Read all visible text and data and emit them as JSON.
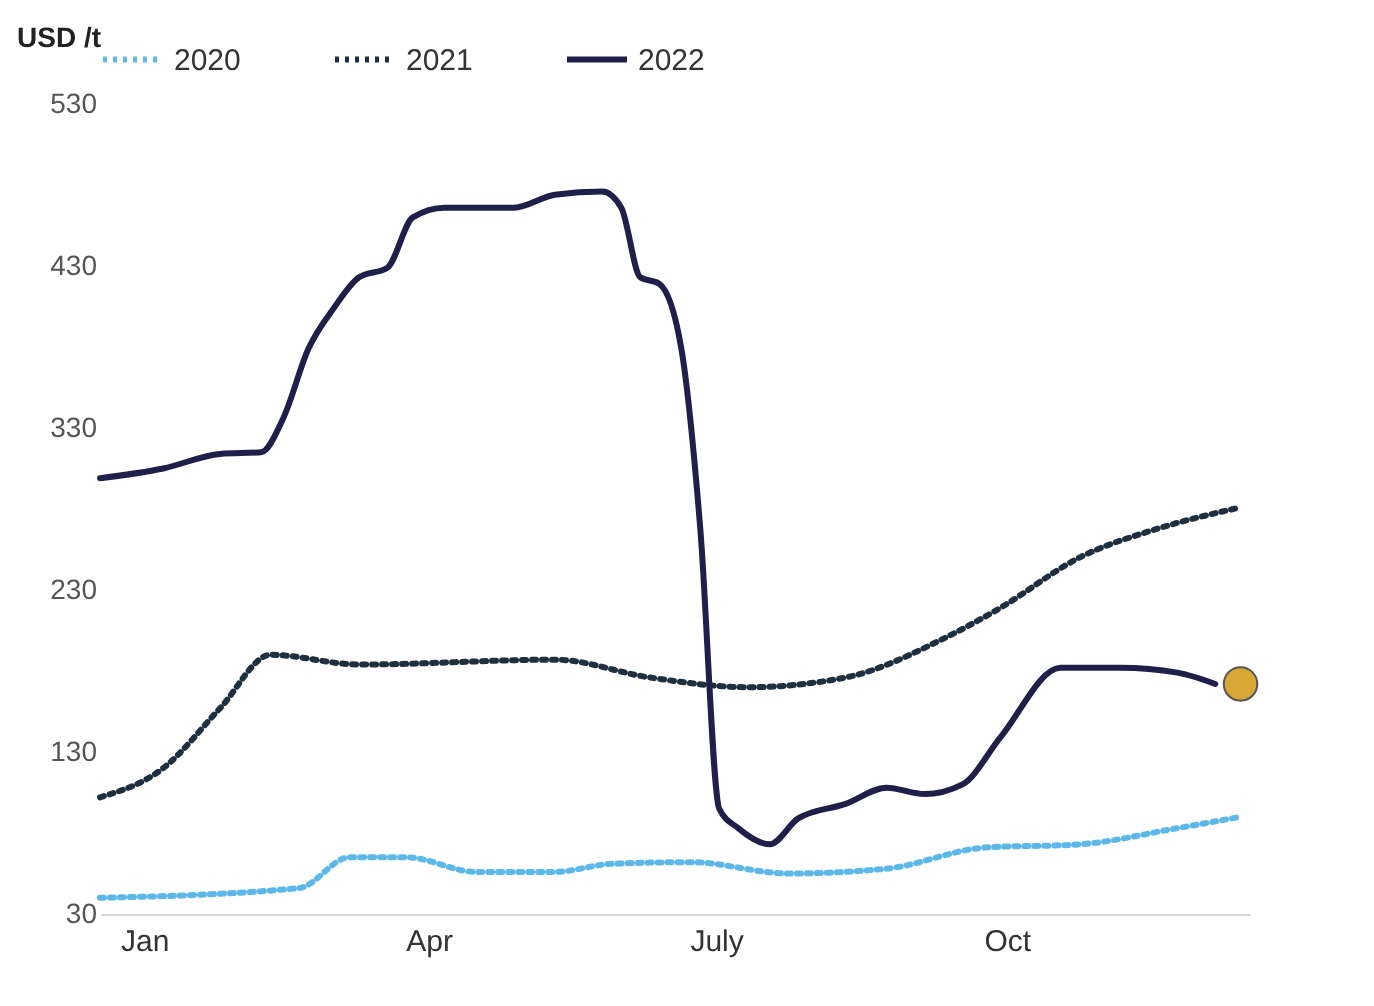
{
  "chart_data": {
    "type": "line",
    "ylabel": "USD /t",
    "xlim": [
      "--01-01",
      "--12-31"
    ],
    "xticks": [
      {
        "value": "--01-15",
        "label": "Jan"
      },
      {
        "value": "--04-15",
        "label": "Apr"
      },
      {
        "value": "--07-15",
        "label": "July"
      },
      {
        "value": "--10-15",
        "label": "Oct"
      }
    ],
    "ylim": [
      30,
      530
    ],
    "yticks": [
      30,
      130,
      230,
      330,
      430,
      530
    ],
    "grid": false,
    "legend": "top",
    "marker": "none",
    "series": [
      {
        "name": "2020",
        "color": "#5bb8e8",
        "line_style": "dotted",
        "x": [
          "--01-01",
          "--03-05",
          "--03-21",
          "--04-08",
          "--04-30",
          "--05-25",
          "--06-12",
          "--07-07",
          "--08-07",
          "--09-07",
          "--10-08",
          "--11-07",
          "--12-08",
          "--12-28"
        ],
        "values": [
          40,
          46,
          65,
          65,
          56,
          56,
          61,
          62,
          55,
          58,
          71,
          73,
          83,
          90
        ]
      },
      {
        "name": "2021",
        "color": "#1e3040",
        "line_style": "dotted",
        "x": [
          "--01-01",
          "--01-21",
          "--02-08",
          "--02-24",
          "--03-24",
          "--05-25",
          "--06-24",
          "--07-25",
          "--08-25",
          "--09-25",
          "--10-13",
          "--11-07",
          "--12-02",
          "--12-28"
        ],
        "values": [
          102,
          120,
          157,
          190,
          184,
          187,
          176,
          170,
          176,
          200,
          219,
          250,
          268,
          281
        ]
      },
      {
        "name": "2022",
        "color": "#1f1f4a",
        "line_style": "solid",
        "x": [
          "--01-01",
          "--01-21",
          "--02-08",
          "--02-21",
          "--02-28",
          "--03-08",
          "--03-16",
          "--03-24",
          "--04-02",
          "--04-10",
          "--04-20",
          "--05-12",
          "--05-25",
          "--06-09",
          "--06-15",
          "--06-21",
          "--06-27",
          "--07-04",
          "--07-10",
          "--07-16",
          "--07-22",
          "--08-01",
          "--08-10",
          "--08-25",
          "--09-07",
          "--09-19",
          "--10-01",
          "--10-13",
          "--11-01",
          "--11-20",
          "--12-08",
          "--12-20"
        ],
        "values": [
          299,
          305,
          314,
          315,
          336,
          379,
          404,
          423,
          429,
          460,
          466,
          466,
          474,
          476,
          466,
          423,
          419,
          379,
          268,
          95,
          83,
          73,
          89,
          98,
          108,
          104,
          110,
          139,
          182,
          182,
          179,
          172
        ]
      },
      {
        "type": "scatter",
        "marker": "circle",
        "color": "#d8a735",
        "x": [
          "--12-28"
        ],
        "values": [
          172
        ]
      }
    ]
  }
}
